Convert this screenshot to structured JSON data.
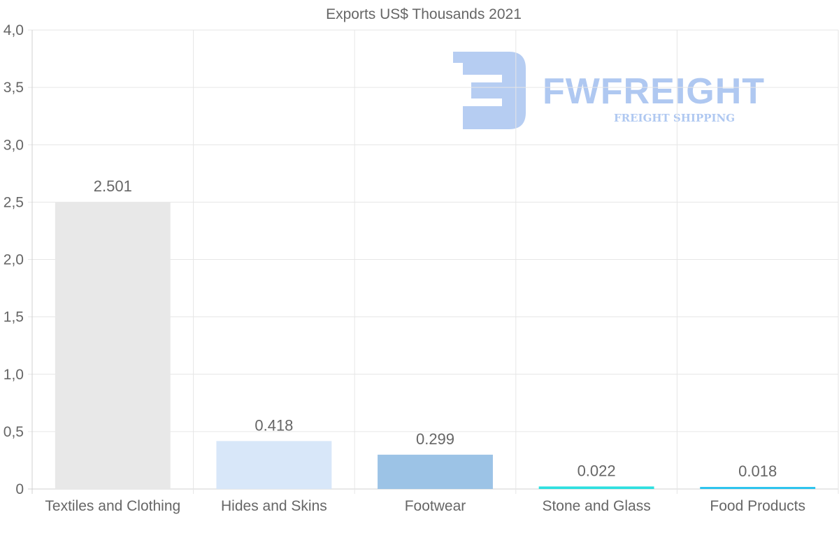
{
  "chart_data": {
    "type": "bar",
    "title": "Exports US$ Thousands 2021",
    "xlabel": "",
    "ylabel": "",
    "categories": [
      "Textiles and Clothing",
      "Hides and Skins",
      "Footwear",
      "Stone and Glass",
      "Food Products"
    ],
    "values": [
      2.501,
      0.418,
      0.299,
      0.022,
      0.018
    ],
    "data_labels": [
      "2.501",
      "0.418",
      "0.299",
      "0.022",
      "0.018"
    ],
    "bar_colors": [
      "#e8e8e8",
      "#d8e7f9",
      "#9cc3e6",
      "#2de0e0",
      "#2cc3ee"
    ],
    "ylim": [
      0,
      4
    ],
    "yticks": [
      0,
      0.5,
      1,
      1.5,
      2,
      2.5,
      3,
      3.5,
      4
    ],
    "ytick_labels": [
      "0",
      "0,5",
      "1,0",
      "1,5",
      "2,0",
      "2,5",
      "3,0",
      "3,5",
      "4,0"
    ],
    "grid": true,
    "legend": "none"
  },
  "watermark": {
    "name": "FWFREIGHT",
    "tagline": "FREIGHT SHIPPING",
    "color": "#6d9be6"
  }
}
